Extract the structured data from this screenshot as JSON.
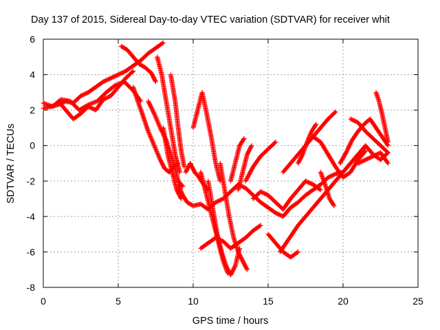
{
  "chart_data": {
    "type": "scatter",
    "title": "Day 137 of 2015, Sidereal Day-to-day VTEC variation (SDTVAR) for receiver whit",
    "xlabel": "GPS time / hours",
    "ylabel": "SDTVAR / TECUs",
    "xlim": [
      0,
      25
    ],
    "ylim": [
      -8,
      6
    ],
    "x_ticks": [
      0,
      5,
      10,
      15,
      20,
      25
    ],
    "y_ticks": [
      -8,
      -6,
      -4,
      -2,
      0,
      2,
      4,
      6
    ],
    "x_tick_labels": [
      "0",
      "5",
      "10",
      "15",
      "20",
      "25"
    ],
    "y_tick_labels": [
      "-8",
      "-6",
      "-4",
      "-2",
      "0",
      "2",
      "4",
      "6"
    ],
    "grid": true,
    "legend": "none",
    "marker": "+",
    "color": "#ff0000",
    "series": [
      {
        "x": [
          0.0,
          0.5,
          1.0,
          1.5,
          2.0,
          2.5,
          3.0,
          3.5,
          4.0,
          4.5,
          5.0,
          5.5,
          6.0,
          6.5,
          7.0,
          7.5,
          8.0
        ],
        "y": [
          2.1,
          2.2,
          2.3,
          2.5,
          2.4,
          2.8,
          3.0,
          3.3,
          3.6,
          3.8,
          4.0,
          4.2,
          4.5,
          4.8,
          5.2,
          5.5,
          5.8
        ]
      },
      {
        "x": [
          0.0,
          0.6,
          1.2,
          1.8,
          2.4,
          3.0,
          3.6,
          4.2,
          4.8,
          5.4,
          6.0,
          6.5
        ],
        "y": [
          2.4,
          2.2,
          2.6,
          2.5,
          2.0,
          2.3,
          2.5,
          3.0,
          3.4,
          3.6,
          3.1,
          2.5
        ]
      },
      {
        "x": [
          1.0,
          1.5,
          2.0,
          2.5,
          3.0,
          3.5,
          4.0,
          4.5,
          5.0,
          5.5,
          6.0
        ],
        "y": [
          2.5,
          2.0,
          1.5,
          1.8,
          2.2,
          2.0,
          2.6,
          2.8,
          3.3,
          3.8,
          4.2
        ]
      },
      {
        "x": [
          5.2,
          5.6,
          6.0,
          6.4,
          6.8,
          7.2,
          7.5
        ],
        "y": [
          5.6,
          5.4,
          5.0,
          4.6,
          4.4,
          4.1,
          3.6
        ]
      },
      {
        "x": [
          6.0,
          6.3,
          6.6,
          7.0,
          7.4,
          7.8,
          8.1,
          8.4,
          8.7,
          9.0
        ],
        "y": [
          3.3,
          2.5,
          1.8,
          0.8,
          0.0,
          -0.8,
          -1.3,
          -1.5,
          -1.2,
          -1.0
        ]
      },
      {
        "x": [
          7.0,
          7.4,
          7.8,
          8.2,
          8.5,
          8.8,
          9.0,
          9.3
        ],
        "y": [
          2.5,
          1.8,
          1.0,
          0.3,
          -0.5,
          -1.3,
          -2.0,
          -2.3
        ]
      },
      {
        "x": [
          7.6,
          7.9,
          8.2,
          8.5,
          8.8,
          9.1
        ],
        "y": [
          5.0,
          4.0,
          2.5,
          1.0,
          -0.5,
          -1.5
        ]
      },
      {
        "x": [
          8.0,
          8.3,
          8.6,
          8.9,
          9.2
        ],
        "y": [
          1.0,
          -0.5,
          -1.5,
          -2.5,
          -3.0
        ]
      },
      {
        "x": [
          8.5,
          8.8,
          9.0,
          9.2,
          9.4
        ],
        "y": [
          4.0,
          2.5,
          1.0,
          -0.3,
          -1.2
        ]
      },
      {
        "x": [
          9.0,
          9.3,
          9.6,
          10.0,
          10.5,
          11.0,
          11.5,
          12.0,
          12.5,
          13.0,
          13.5,
          14.0,
          14.5,
          15.0,
          15.5,
          16.0,
          16.5,
          17.0,
          17.5,
          18.0,
          18.5,
          19.0,
          19.5,
          20.0,
          20.5,
          21.0
        ],
        "y": [
          -2.2,
          -2.8,
          -3.2,
          -3.4,
          -3.3,
          -3.6,
          -3.2,
          -3.0,
          -2.6,
          -2.2,
          -2.4,
          -2.8,
          -3.2,
          -3.5,
          -3.8,
          -4.0,
          -3.5,
          -3.2,
          -2.8,
          -2.5,
          -2.2,
          -1.8,
          -1.6,
          -1.5,
          -1.0,
          -0.5
        ]
      },
      {
        "x": [
          9.5,
          9.8,
          10.1,
          10.4,
          10.7,
          11.0
        ],
        "y": [
          -1.5,
          -1.0,
          -1.5,
          -1.8,
          -2.2,
          -2.5
        ]
      },
      {
        "x": [
          10.0,
          10.3,
          10.6,
          10.9,
          11.2,
          11.5,
          11.8
        ],
        "y": [
          1.0,
          2.0,
          3.0,
          1.8,
          0.5,
          -1.0,
          -2.0
        ]
      },
      {
        "x": [
          10.5,
          10.8,
          11.1,
          11.4,
          11.7,
          12.0,
          12.3
        ],
        "y": [
          -1.5,
          -2.5,
          -3.5,
          -4.5,
          -5.5,
          -6.5,
          -7.2
        ]
      },
      {
        "x": [
          11.0,
          11.3,
          11.6,
          11.9,
          12.2,
          12.5,
          12.8,
          13.1
        ],
        "y": [
          -2.0,
          -3.5,
          -5.0,
          -6.0,
          -6.8,
          -7.3,
          -6.8,
          -5.8
        ]
      },
      {
        "x": [
          11.8,
          12.1,
          12.4,
          12.7,
          13.0,
          13.3,
          13.6
        ],
        "y": [
          -1.0,
          -2.5,
          -4.0,
          -5.2,
          -6.0,
          -6.5,
          -7.0
        ]
      },
      {
        "x": [
          10.5,
          11.0,
          11.5,
          12.0,
          12.5,
          13.0,
          13.5,
          14.0,
          14.5
        ],
        "y": [
          -5.8,
          -5.5,
          -5.2,
          -5.4,
          -5.8,
          -5.5,
          -5.2,
          -4.8,
          -4.5
        ]
      },
      {
        "x": [
          12.5,
          12.8,
          13.1,
          13.4
        ],
        "y": [
          -2.0,
          -1.0,
          0.0,
          0.4
        ]
      },
      {
        "x": [
          13.0,
          13.3,
          13.6,
          13.9
        ],
        "y": [
          -2.5,
          -1.5,
          -0.5,
          0.0
        ]
      },
      {
        "x": [
          13.5,
          14.0,
          14.5,
          15.0,
          15.5
        ],
        "y": [
          -2.0,
          -1.2,
          -0.6,
          -0.2,
          0.2
        ]
      },
      {
        "x": [
          14.0,
          14.5,
          15.0,
          15.5,
          16.0,
          16.5,
          17.0,
          17.5,
          18.0,
          18.5
        ],
        "y": [
          -3.0,
          -2.6,
          -2.8,
          -3.2,
          -3.6,
          -3.0,
          -2.5,
          -2.0,
          -2.2,
          -2.5
        ]
      },
      {
        "x": [
          15.0,
          15.5,
          16.0,
          16.5,
          17.0
        ],
        "y": [
          -5.0,
          -5.5,
          -6.0,
          -6.3,
          -6.0
        ]
      },
      {
        "x": [
          15.8,
          16.2,
          16.6,
          17.0,
          17.5,
          18.0,
          18.5,
          19.0,
          19.5,
          20.0,
          20.5,
          21.0,
          21.5,
          22.0,
          22.5,
          23.0
        ],
        "y": [
          -6.0,
          -5.5,
          -5.0,
          -4.5,
          -4.0,
          -3.5,
          -3.0,
          -2.5,
          -2.0,
          -1.5,
          -1.0,
          -0.5,
          0.0,
          -0.5,
          -0.8,
          -0.4
        ]
      },
      {
        "x": [
          16.0,
          16.5,
          17.0,
          17.5,
          18.0,
          18.5,
          19.0,
          19.5
        ],
        "y": [
          -1.5,
          -1.0,
          -0.5,
          0.0,
          0.5,
          1.0,
          1.5,
          1.9
        ]
      },
      {
        "x": [
          17.0,
          17.3,
          17.6,
          17.9,
          18.2
        ],
        "y": [
          -1.0,
          -0.5,
          0.2,
          0.8,
          1.2
        ]
      },
      {
        "x": [
          18.0,
          18.5,
          19.0,
          19.5,
          20.0,
          20.5,
          21.0,
          21.5
        ],
        "y": [
          0.5,
          0.2,
          -0.5,
          -1.2,
          -1.8,
          -1.5,
          -0.8,
          -0.3
        ]
      },
      {
        "x": [
          18.5,
          18.8,
          19.1,
          19.4
        ],
        "y": [
          -1.5,
          -2.2,
          -3.0,
          -3.4
        ]
      },
      {
        "x": [
          19.8,
          20.2,
          20.6,
          21.0,
          21.4,
          21.8,
          22.2,
          22.6,
          23.0
        ],
        "y": [
          -1.0,
          -0.4,
          0.3,
          0.8,
          1.2,
          1.5,
          1.0,
          0.5,
          0.0
        ]
      },
      {
        "x": [
          20.5,
          21.0,
          21.5,
          22.0,
          22.5,
          23.0
        ],
        "y": [
          1.5,
          1.3,
          0.8,
          0.4,
          0.0,
          -0.4
        ]
      },
      {
        "x": [
          21.0,
          21.5,
          22.0,
          22.5,
          23.0
        ],
        "y": [
          -1.0,
          -0.8,
          -0.6,
          -0.4,
          -1.0
        ]
      },
      {
        "x": [
          22.2,
          22.4,
          22.6,
          22.8,
          23.0
        ],
        "y": [
          3.0,
          2.5,
          1.8,
          1.0,
          0.2
        ]
      }
    ]
  }
}
